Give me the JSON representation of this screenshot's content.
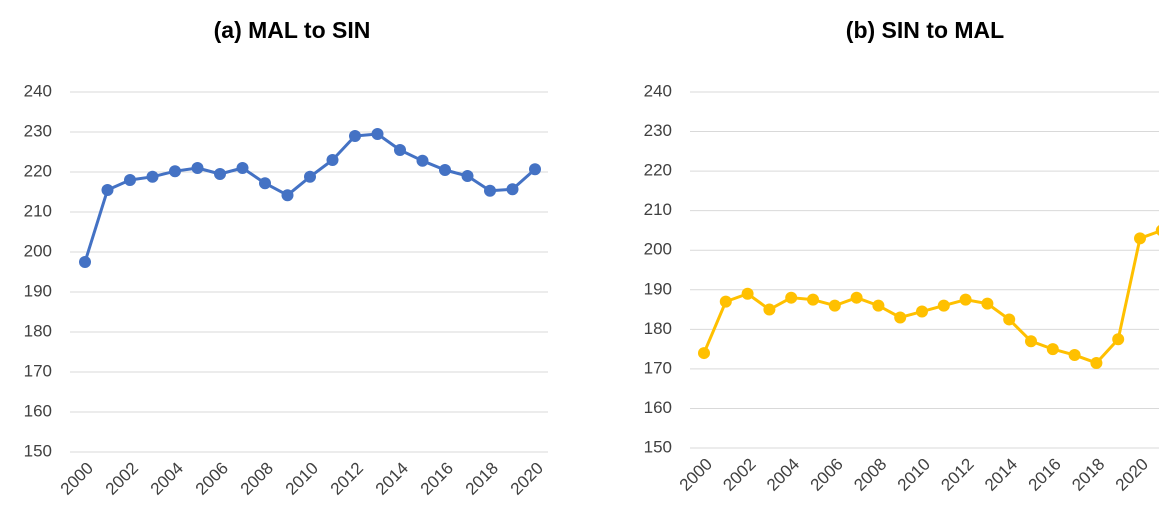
{
  "chart_data": [
    {
      "type": "line",
      "title": "(a) MAL to SIN",
      "categories": [
        "2000",
        null,
        "2002",
        null,
        "2004",
        null,
        "2006",
        null,
        "2008",
        null,
        "2010",
        null,
        "2012",
        null,
        "2014",
        null,
        "2016",
        null,
        "2018",
        null,
        "2020"
      ],
      "series": [
        {
          "name": null,
          "color": "#4472c4",
          "values": [
            197.5,
            215.5,
            218,
            218.8,
            220.2,
            221,
            219.5,
            221,
            217.2,
            214.2,
            218.8,
            223,
            229,
            229.5,
            225.5,
            222.8,
            220.5,
            219,
            215.3,
            215.7,
            220.7
          ]
        }
      ],
      "ylim": [
        150,
        240
      ],
      "yticks": [
        150,
        160,
        170,
        180,
        190,
        200,
        210,
        220,
        230,
        240
      ],
      "grid": true
    },
    {
      "type": "line",
      "title": "(b) SIN to MAL",
      "categories": [
        "2000",
        null,
        "2002",
        null,
        "2004",
        null,
        "2006",
        null,
        "2008",
        null,
        "2010",
        null,
        "2012",
        null,
        "2014",
        null,
        "2016",
        null,
        "2018",
        null,
        "2020",
        null
      ],
      "series": [
        {
          "name": null,
          "color": "#ffc000",
          "values": [
            174,
            187,
            189,
            185,
            188,
            187.5,
            186,
            188,
            186,
            183,
            184.5,
            186,
            187.5,
            186.5,
            182.5,
            177,
            175,
            173.5,
            171.5,
            177.5,
            203,
            205
          ]
        }
      ],
      "ylim": [
        150,
        240
      ],
      "yticks": [
        150,
        160,
        170,
        180,
        190,
        200,
        210,
        220,
        230,
        240
      ],
      "grid": true
    }
  ]
}
